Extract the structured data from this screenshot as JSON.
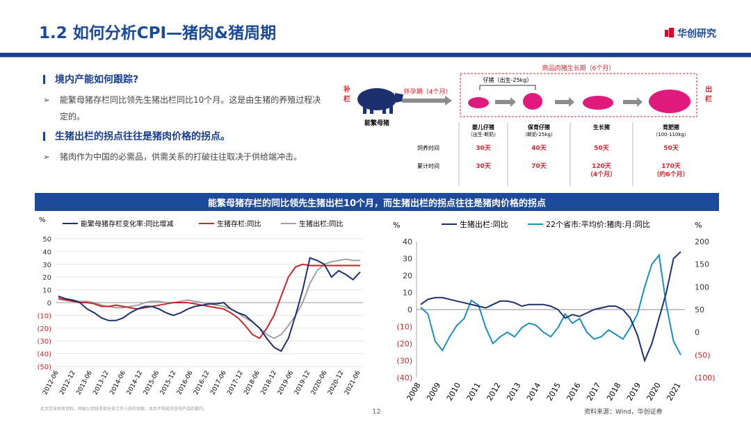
{
  "header": {
    "title": "1.2 如何分析CPI—猪肉&猪周期",
    "logo_text": "华创研究"
  },
  "bullets": [
    {
      "kind": "heading",
      "text": "境内产能如何跟踪?"
    },
    {
      "kind": "point",
      "text": "能繁母猪存栏同比领先生猪出栏同比10个月。这是由生猪的养殖过程决定的。"
    },
    {
      "kind": "heading",
      "text": "生猪出栏的拐点往往是猪肉价格的拐点。"
    },
    {
      "kind": "point",
      "text": "猪肉作为中国的必需品，供需关系的打破往往取决于供给端冲击。"
    }
  ],
  "diagram": {
    "left_side": "补栏",
    "right_side": "出栏",
    "sow_label": "能繁母猪",
    "gestation": "怀孕期（4个月）",
    "cycle_title": "商品肉猪生长期（6个月）",
    "piglet_title": "仔猪（出生-25kg）",
    "stages": [
      {
        "name": "婴儿仔猪",
        "sub": "（出生-断奶）",
        "feed": "30天",
        "cumulative": "30天",
        "cumulative2": ""
      },
      {
        "name": "保育仔猪",
        "sub": "（断奶-25kg）",
        "feed": "40天",
        "cumulative": "70天",
        "cumulative2": ""
      },
      {
        "name": "生长猪",
        "sub": "",
        "feed": "50天",
        "cumulative": "120天",
        "cumulative2": "（4个月）"
      },
      {
        "name": "育肥猪",
        "sub": "（100-110kg）",
        "feed": "50天",
        "cumulative": "170天",
        "cumulative2": "（约6个月）"
      }
    ],
    "row_labels": [
      "饲养时间",
      "累计时间"
    ],
    "colors": {
      "sow": "#1c2f6e",
      "pig": "#e0197d",
      "red": "#d8262e",
      "arrow": "#8c8c8c"
    }
  },
  "banner": "能繁母猪存栏的同比领先生猪出栏10个月，而生猪出栏的拐点往往是猪肉价格的拐点",
  "chart_data": [
    {
      "type": "line",
      "ylabel": "%",
      "ylim": [
        -50,
        50
      ],
      "yticks": [
        "50",
        "40",
        "30",
        "20",
        "10",
        "0",
        "(10)",
        "(20)",
        "(30)",
        "(40)",
        "(50)"
      ],
      "x_ticks": [
        "2012-06",
        "2012-12",
        "2013-06",
        "2013-12",
        "2014-06",
        "2014-12",
        "2015-06",
        "2015-12",
        "2016-06",
        "2016-12",
        "2017-06",
        "2017-12",
        "2018-06",
        "2018-12",
        "2019-06",
        "2019-12",
        "2020-06",
        "2020-12",
        "2021-06"
      ],
      "legend_position": "top",
      "series": [
        {
          "name": "能繁母猪存栏变化率:同比增减",
          "color": "#1c2f6e",
          "values": [
            5,
            3,
            2,
            0,
            -5,
            -8,
            -12,
            -14,
            -14,
            -12,
            -8,
            -5,
            -3,
            -3,
            -5,
            -8,
            -10,
            -8,
            -5,
            -3,
            -2,
            -1,
            -1,
            0,
            -5,
            -8,
            -10,
            -15,
            -20,
            -28,
            -35,
            -38,
            -28,
            -10,
            10,
            35,
            33,
            30,
            20,
            25,
            22,
            18,
            24
          ]
        },
        {
          "name": "生猪存栏:同比",
          "color": "#c62828",
          "values": [
            3,
            2,
            1,
            0,
            0,
            -1,
            -3,
            -3,
            -2,
            -3,
            -4,
            -5,
            -4,
            -3,
            -2,
            -1,
            0,
            0,
            0,
            -1,
            -2,
            -3,
            -4,
            -5,
            -8,
            -12,
            -18,
            -25,
            -28,
            -20,
            -10,
            5,
            20,
            28,
            30,
            29,
            29,
            29,
            29,
            29,
            29,
            29,
            29
          ]
        },
        {
          "name": "生猪出栏:同比",
          "color": "#a0a0a0",
          "values": [
            4,
            3,
            2,
            1,
            1,
            0,
            -2,
            -3,
            -4,
            -4,
            -3,
            -2,
            0,
            1,
            1,
            0,
            0,
            1,
            2,
            1,
            0,
            -1,
            -2,
            -3,
            -5,
            -8,
            -12,
            -15,
            -20,
            -25,
            -28,
            -25,
            -18,
            -10,
            0,
            15,
            25,
            30,
            32,
            33,
            34,
            33,
            33
          ]
        }
      ]
    },
    {
      "type": "line",
      "ylabel": "%",
      "ylabel_right": "%",
      "ylim": [
        -40,
        40
      ],
      "ylim_right": [
        -100,
        200
      ],
      "yticks": [
        "40",
        "30",
        "20",
        "10",
        "0",
        "(10)",
        "(20)",
        "(30)",
        "(40)"
      ],
      "yticks_right": [
        "200",
        "150",
        "100",
        "50",
        "0",
        "(50)",
        "(100)"
      ],
      "x_ticks": [
        "2008",
        "2009",
        "2010",
        "2011",
        "2012",
        "2013",
        "2014",
        "2015",
        "2016",
        "2017",
        "2018",
        "2019",
        "2020",
        "2021"
      ],
      "legend_position": "top",
      "series": [
        {
          "name": "生猪出栏:同比",
          "axis": "left",
          "color": "#1c2f6e",
          "values": [
            3,
            6,
            7,
            7,
            6,
            5,
            4,
            3,
            2,
            1,
            3,
            5,
            5,
            4,
            2,
            3,
            3,
            3,
            2,
            0,
            -5,
            -3,
            -4,
            -2,
            0,
            1,
            2,
            2,
            0,
            -5,
            -15,
            -30,
            -20,
            -5,
            10,
            30,
            34
          ]
        },
        {
          "name": "22个省市:平均价:猪肉:月:同比",
          "axis": "right",
          "color": "#1a8fbd",
          "values": [
            55,
            40,
            -20,
            -40,
            -10,
            15,
            30,
            70,
            60,
            10,
            -25,
            -10,
            0,
            -10,
            10,
            20,
            15,
            0,
            -10,
            10,
            40,
            20,
            30,
            0,
            -15,
            -10,
            5,
            -5,
            -15,
            10,
            40,
            100,
            150,
            170,
            60,
            -20,
            -50
          ]
        }
      ]
    }
  ],
  "footer": {
    "disclaimer": "此页包含机密资料。网易公司财务部全体工作人员的贡献。本页不构成对任何产品的要约。",
    "page": "12",
    "source": "资料来源：Wind，华创证券"
  }
}
